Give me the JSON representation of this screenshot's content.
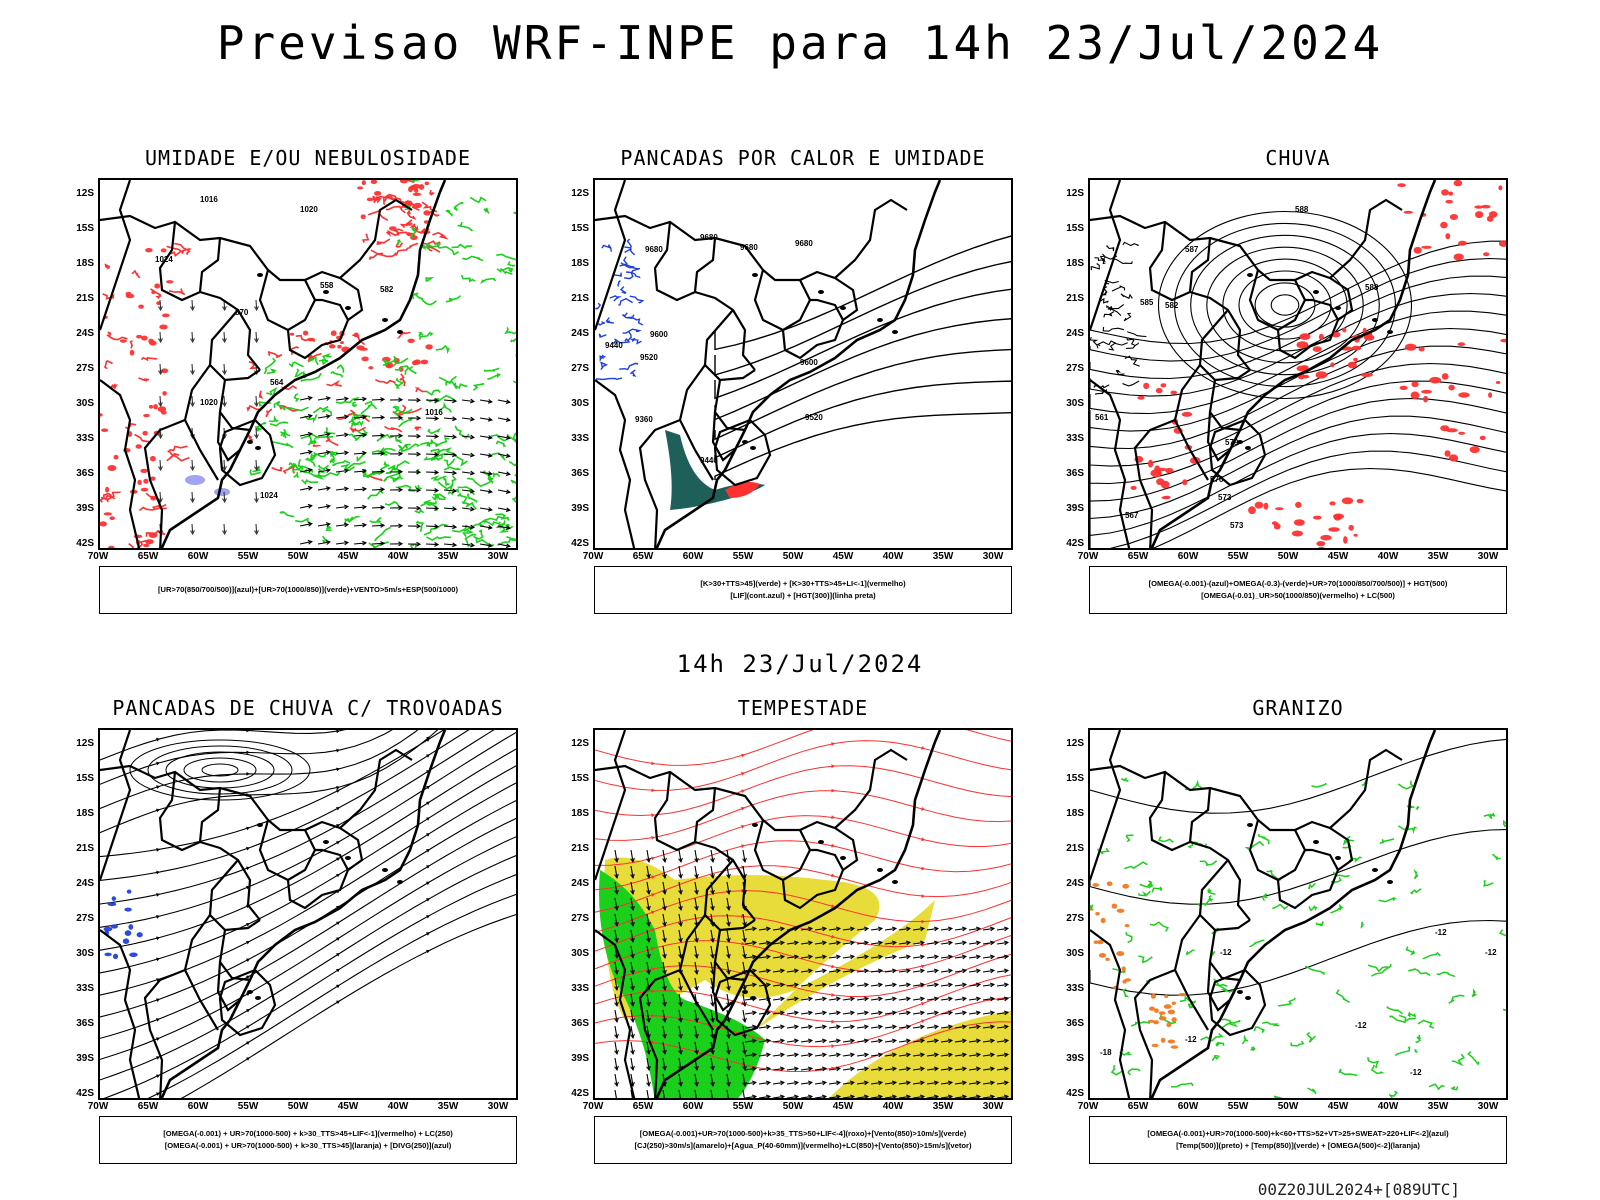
{
  "title": "Previsao WRF-INPE  para 14h 23/Jul/2024",
  "subtitle": "14h 23/Jul/2024",
  "footer": "00Z20JUL2024+[089UTC]",
  "lat_labels": [
    "12S",
    "15S",
    "18S",
    "21S",
    "24S",
    "27S",
    "30S",
    "33S",
    "36S",
    "39S",
    "42S"
  ],
  "lon_labels": [
    "70W",
    "65W",
    "60W",
    "55W",
    "50W",
    "45W",
    "40W",
    "35W",
    "30W"
  ],
  "colors": {
    "red": "#ff3030",
    "green": "#1ad01a",
    "blue": "#2040e0",
    "yellow": "#e8dc3a",
    "teal": "#1f5f5a",
    "orange": "#f07820",
    "purple": "#8c8cf0"
  },
  "panels": [
    {
      "title": "UMIDADE E/OU NEBULOSIDADE",
      "legend": [
        "[UR>70(850/700/500)](azul)+[UR>70(1000/850)](verde)+VENTO>5m/s+ESP(500/1000)"
      ],
      "contour_labels": [
        "1016",
        "1020",
        "1024",
        "570",
        "564",
        "558",
        "582",
        "1016",
        "1020",
        "1024"
      ]
    },
    {
      "title": "PANCADAS POR CALOR E UMIDADE",
      "legend": [
        "[K>30+TTS>45](verde) + [K>30+TTS>45+LI<-1](vermelho)",
        "[LIF](cont.azul) + [HGT(300)](linha preta)"
      ],
      "contour_labels": [
        "9680",
        "9680",
        "9680",
        "9680",
        "9600",
        "9440",
        "9520",
        "9360",
        "9440",
        "9600",
        "9520"
      ]
    },
    {
      "title": "CHUVA",
      "legend": [
        "[OMEGA(-0.001)-(azul)+OMEGA(-0.3)-(verde)+UR>70(1000/850/700/500)] + HGT(500)",
        "[OMEGA(-0.01)_UR>50(1000/850)(vermelho) + LC(500)"
      ],
      "contour_labels": [
        "588",
        "587",
        "585",
        "582",
        "579",
        "576",
        "573",
        "567",
        "561",
        "588",
        "573"
      ]
    },
    {
      "title": "PANCADAS DE CHUVA C/ TROVOADAS",
      "legend": [
        "[OMEGA(-0.001) + UR>70(1000-500) + k>30_TTS>45+LIF<-1](vermelho) + LC(250)",
        "[OMEGA(-0.001) + UR>70(1000-500) + k>30_TTS>45](laranja) + [DIVG(250)](azul)"
      ],
      "contour_labels": []
    },
    {
      "title": "TEMPESTADE",
      "legend": [
        "[OMEGA(-0.001)+UR>70(1000-500)+k>35_TTS>50+LIF<-4](roxo)+[Vento(850)>10m/s](verde)",
        "[CJ(250)>30m/s](amarelo)+[Agua_P(40-60mm)](vermelho)+LC(850)+[Vento(850)>15m/s](vetor)"
      ],
      "contour_labels": []
    },
    {
      "title": "GRANIZO",
      "legend": [
        "[OMEGA(-0.001)+UR>70(1000-500)+k<60+TTS>52+VT>25+SWEAT>220+LIF<-2](azul)",
        "[Temp(500)](preto) + [Temp(850)](verde) + [OMEGA(500)<-2](laranja)"
      ],
      "contour_labels": [
        "-12",
        "-12",
        "-12",
        "-18",
        "-12",
        "-12",
        "-12"
      ]
    }
  ]
}
